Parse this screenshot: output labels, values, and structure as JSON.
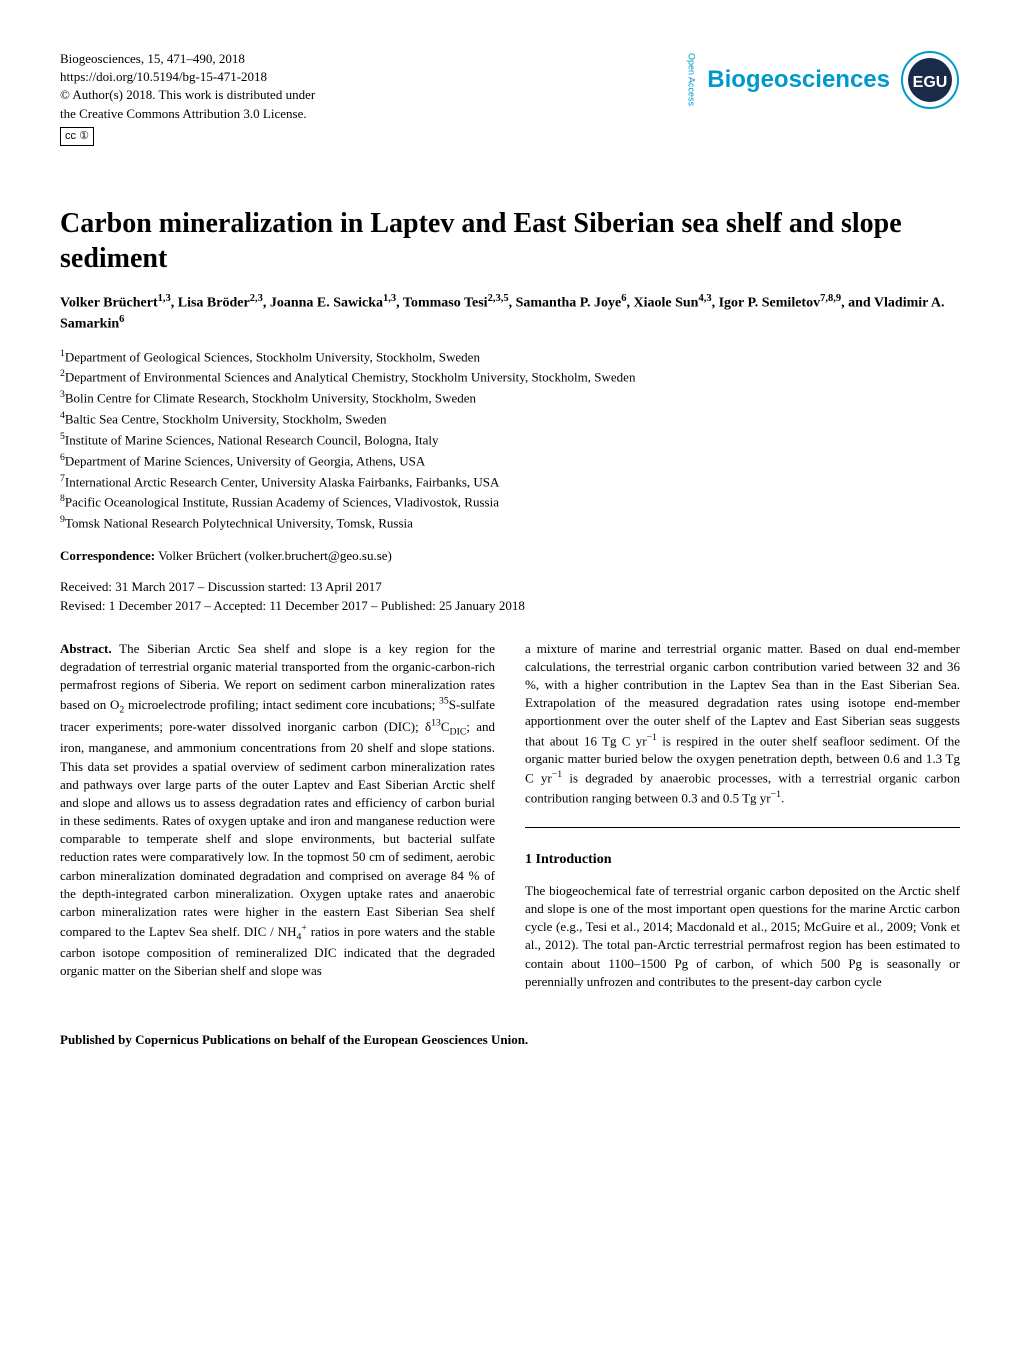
{
  "journal": {
    "citation": "Biogeosciences, 15, 471–490, 2018",
    "doi": "https://doi.org/10.5194/bg-15-471-2018",
    "copyright": "© Author(s) 2018. This work is distributed under",
    "license": "the Creative Commons Attribution 3.0 License.",
    "cc_label": "cc",
    "cc_by": "BY",
    "name": "Biogeosciences",
    "open_access": "Open Access",
    "publisher_mark": "EGU"
  },
  "colors": {
    "logo_blue": "#0099cc",
    "egu_navy": "#1a2b4a",
    "egu_white": "#ffffff",
    "text": "#000000",
    "background": "#ffffff"
  },
  "title": "Carbon mineralization in Laptev and East Siberian sea shelf and slope sediment",
  "authors_html": "Volker Brüchert<sup>1,3</sup>, Lisa Bröder<sup>2,3</sup>, Joanna E. Sawicka<sup>1,3</sup>, Tommaso Tesi<sup>2,3,5</sup>, Samantha P. Joye<sup>6</sup>, Xiaole Sun<sup>4,3</sup>, Igor P. Semiletov<sup>7,8,9</sup>, and Vladimir A. Samarkin<sup>6</sup>",
  "affiliations": [
    "<sup>1</sup>Department of Geological Sciences, Stockholm University, Stockholm, Sweden",
    "<sup>2</sup>Department of Environmental Sciences and Analytical Chemistry, Stockholm University, Stockholm, Sweden",
    "<sup>3</sup>Bolin Centre for Climate Research, Stockholm University, Stockholm, Sweden",
    "<sup>4</sup>Baltic Sea Centre, Stockholm University, Stockholm, Sweden",
    "<sup>5</sup>Institute of Marine Sciences, National Research Council, Bologna, Italy",
    "<sup>6</sup>Department of Marine Sciences, University of Georgia, Athens, USA",
    "<sup>7</sup>International Arctic Research Center, University Alaska Fairbanks, Fairbanks, USA",
    "<sup>8</sup>Pacific Oceanological Institute, Russian Academy of Sciences, Vladivostok, Russia",
    "<sup>9</sup>Tomsk National Research Polytechnical University, Tomsk, Russia"
  ],
  "correspondence": {
    "label": "Correspondence:",
    "text": " Volker Brüchert (volker.bruchert@geo.su.se)"
  },
  "dates": {
    "line1": "Received: 31 March 2017 – Discussion started: 13 April 2017",
    "line2": "Revised: 1 December 2017 – Accepted: 11 December 2017 – Published: 25 January 2018"
  },
  "abstract_label": "Abstract.",
  "abstract_left": " The Siberian Arctic Sea shelf and slope is a key region for the degradation of terrestrial organic material transported from the organic-carbon-rich permafrost regions of Siberia. We report on sediment carbon mineralization rates based on O<sub>2</sub> microelectrode profiling; intact sediment core incubations; <sup>35</sup>S-sulfate tracer experiments; pore-water dissolved inorganic carbon (DIC); δ<sup>13</sup>C<sub>DIC</sub>; and iron, manganese, and ammonium concentrations from 20 shelf and slope stations. This data set provides a spatial overview of sediment carbon mineralization rates and pathways over large parts of the outer Laptev and East Siberian Arctic shelf and slope and allows us to assess degradation rates and efficiency of carbon burial in these sediments. Rates of oxygen uptake and iron and manganese reduction were comparable to temperate shelf and slope environments, but bacterial sulfate reduction rates were comparatively low. In the topmost 50 cm of sediment, aerobic carbon mineralization dominated degradation and comprised on average 84 % of the depth-integrated carbon mineralization. Oxygen uptake rates and anaerobic carbon mineralization rates were higher in the eastern East Siberian Sea shelf compared to the Laptev Sea shelf. DIC / NH<sub>4</sub><sup>+</sup> ratios in pore waters and the stable carbon isotope composition of remineralized DIC indicated that the degraded organic matter on the Siberian shelf and slope was",
  "abstract_right": "a mixture of marine and terrestrial organic matter. Based on dual end-member calculations, the terrestrial organic carbon contribution varied between 32 and 36 %, with a higher contribution in the Laptev Sea than in the East Siberian Sea. Extrapolation of the measured degradation rates using isotope end-member apportionment over the outer shelf of the Laptev and East Siberian seas suggests that about 16 Tg C yr<sup>−1</sup> is respired in the outer shelf seafloor sediment. Of the organic matter buried below the oxygen penetration depth, between 0.6 and 1.3 Tg C yr<sup>−1</sup> is degraded by anaerobic processes, with a terrestrial organic carbon contribution ranging between 0.3 and 0.5 Tg yr<sup>−1</sup>.",
  "section1": {
    "heading": "1   Introduction",
    "text": "The biogeochemical fate of terrestrial organic carbon deposited on the Arctic shelf and slope is one of the most important open questions for the marine Arctic carbon cycle (e.g., Tesi et al., 2014; Macdonald et al., 2015; McGuire et al., 2009; Vonk et al., 2012). The total pan-Arctic terrestrial permafrost region has been estimated to contain about 1100–1500 Pg of carbon, of which 500 Pg is seasonally or perennially unfrozen and contributes to the present-day carbon cycle"
  },
  "footer": "Published by Copernicus Publications on behalf of the European Geosciences Union."
}
